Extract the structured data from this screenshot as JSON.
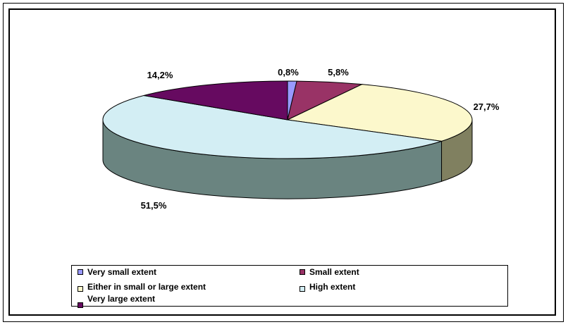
{
  "chart_data": {
    "type": "pie",
    "style": "3d-exploded-flat",
    "slices": [
      {
        "label": "Very small extent",
        "value": 0.8,
        "value_text": "0,8%",
        "color": "#9999ff",
        "side_color": "#6b6bb2"
      },
      {
        "label": "Small extent",
        "value": 5.8,
        "value_text": "5,8%",
        "color": "#993366",
        "side_color": "#6b2447"
      },
      {
        "label": "Either in small or large extent",
        "value": 27.7,
        "value_text": "27,7%",
        "color": "#fcf8cc",
        "side_color": "#808060"
      },
      {
        "label": "High extent",
        "value": 51.5,
        "value_text": "51,5%",
        "color": "#d3eef4",
        "side_color": "#6a8480"
      },
      {
        "label": "Very large extent",
        "value": 14.2,
        "value_text": "14,2%",
        "color": "#660a60",
        "side_color": "#47073f"
      }
    ],
    "legend_position": "bottom"
  }
}
